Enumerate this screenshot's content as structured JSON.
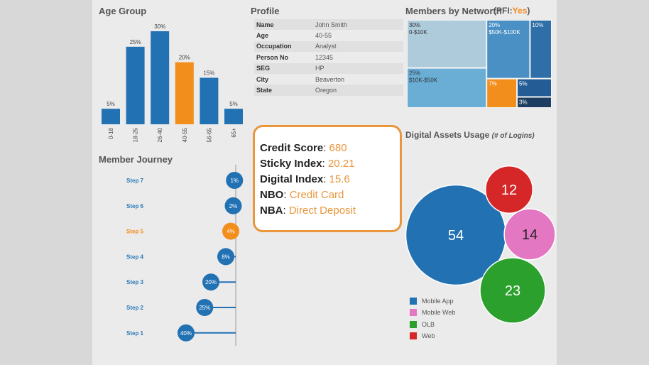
{
  "titles": {
    "age_group": "Age Group",
    "profile": "Profile",
    "members_by_networth": "Members by Networth",
    "pfi_prefix": "(PFI:",
    "pfi_value": "Yes",
    "pfi_suffix": ")",
    "member_journey": "Member Journey",
    "digital_assets": "Digital Assets Usage",
    "digital_assets_sub": "(# of Logins)"
  },
  "profile": [
    {
      "label": "Name",
      "value": "John Smith"
    },
    {
      "label": "Age",
      "value": "40-55"
    },
    {
      "label": "Occupation",
      "value": "Analyst"
    },
    {
      "label": "Person No",
      "value": "12345"
    },
    {
      "label": "SEG",
      "value": "HP"
    },
    {
      "label": "City",
      "value": "Beaverton"
    },
    {
      "label": "State",
      "value": "Oregon"
    }
  ],
  "scores": [
    {
      "label": "Credit Score",
      "value": "680"
    },
    {
      "label": "Sticky Index",
      "value": "20.21"
    },
    {
      "label": "Digital Index",
      "value": "15.6"
    },
    {
      "label": "NBO",
      "value": "Credit Card"
    },
    {
      "label": "NBA",
      "value": "Direct Deposit"
    }
  ],
  "colors": {
    "blue": "#2271b3",
    "orange": "#f28e1c",
    "pink": "#e377c2",
    "green": "#2ca02c",
    "red": "#d62728",
    "step_text": "#2a7ab8",
    "callout_orange": "#e9963d"
  },
  "chart_data": [
    {
      "type": "bar",
      "title": "Age Group",
      "categories": [
        "0-18",
        "18-25",
        "26-40",
        "40-55",
        "56-65",
        "65+"
      ],
      "values": [
        5,
        25,
        30,
        20,
        15,
        5
      ],
      "value_labels": [
        "5%",
        "25%",
        "30%",
        "20%",
        "15%",
        "5%"
      ],
      "highlight": "40-55",
      "ylim": [
        0,
        30
      ]
    },
    {
      "type": "treemap",
      "title": "Members by Networth",
      "cells": [
        {
          "pct": "30%",
          "label": "0-$10K",
          "value": 30,
          "color": "#aecbdc"
        },
        {
          "pct": "25%",
          "label": "$10K-$50K",
          "value": 25,
          "color": "#6aaed6"
        },
        {
          "pct": "20%",
          "label": "$50K-$100K",
          "value": 20,
          "color": "#4a90c4"
        },
        {
          "pct": "10%",
          "label": "",
          "value": 10,
          "color": "#2e6fa8"
        },
        {
          "pct": "7%",
          "label": "",
          "value": 7,
          "color": "#f28e1c"
        },
        {
          "pct": "5%",
          "label": "",
          "value": 5,
          "color": "#245d95"
        },
        {
          "pct": "3%",
          "label": "",
          "value": 3,
          "color": "#1d3e60"
        }
      ]
    },
    {
      "type": "lollipop",
      "title": "Member Journey",
      "steps": [
        {
          "name": "Step 7",
          "value": 1,
          "label": "1%"
        },
        {
          "name": "Step 6",
          "value": 2,
          "label": "2%"
        },
        {
          "name": "Step 5",
          "value": 4,
          "label": "4%",
          "highlight": true
        },
        {
          "name": "Step 4",
          "value": 8,
          "label": "8%"
        },
        {
          "name": "Step 3",
          "value": 20,
          "label": "20%"
        },
        {
          "name": "Step 2",
          "value": 25,
          "label": "25%"
        },
        {
          "name": "Step 1",
          "value": 40,
          "label": "40%"
        }
      ],
      "xlim": [
        0,
        40
      ]
    },
    {
      "type": "bubble",
      "title": "Digital Assets Usage",
      "subtitle": "(# of Logins)",
      "series": [
        {
          "name": "Mobile App",
          "value": 54,
          "color": "#2271b3"
        },
        {
          "name": "Web",
          "value": 12,
          "color": "#d62728"
        },
        {
          "name": "Mobile Web",
          "value": 14,
          "color": "#e377c2"
        },
        {
          "name": "OLB",
          "value": 23,
          "color": "#2ca02c"
        }
      ],
      "legend": [
        "Mobile App",
        "Mobile Web",
        "OLB",
        "Web"
      ]
    }
  ]
}
